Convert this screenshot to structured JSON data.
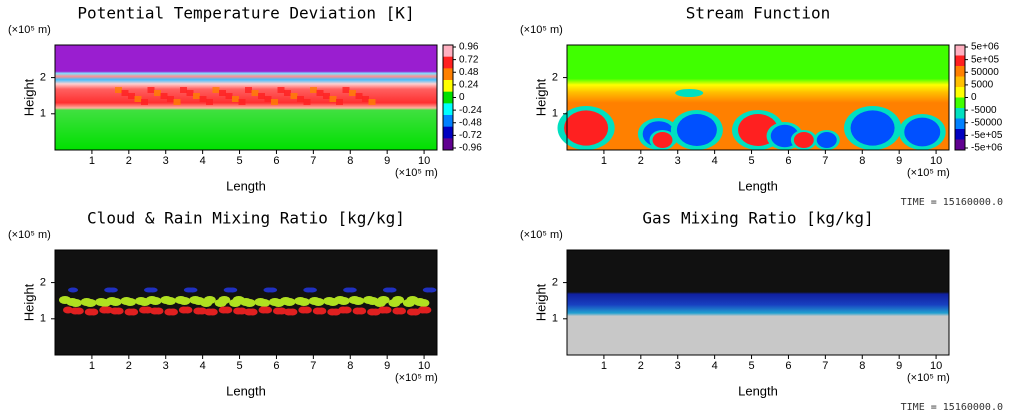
{
  "chart_data": [
    {
      "type": "field",
      "title": "Potential Temperature Deviation [K]",
      "xlabel": "Length",
      "ylabel": "Height",
      "x_unit": "(×10⁵ m)",
      "y_unit": "(×10⁵ m)",
      "xlim": [
        0,
        10.35
      ],
      "ylim": [
        0,
        2.9
      ],
      "xticks": [
        1,
        2,
        3,
        4,
        5,
        6,
        7,
        8,
        9,
        10
      ],
      "yticks": [
        1,
        2
      ],
      "colorbar": {
        "colors": [
          "#ffb0c0",
          "#ff2020",
          "#ff8000",
          "#ffff00",
          "#00e000",
          "#00ffff",
          "#0080ff",
          "#0000c0",
          "#600090"
        ],
        "ticks": [
          0.96,
          0.72,
          0.48,
          0.24,
          0,
          -0.24,
          -0.48,
          -0.72,
          -0.96
        ]
      }
    },
    {
      "type": "field",
      "title": "Stream Function",
      "xlabel": "Length",
      "ylabel": "Height",
      "x_unit": "(×10⁵ m)",
      "y_unit": "(×10⁵ m)",
      "xlim": [
        0,
        10.35
      ],
      "ylim": [
        0,
        2.9
      ],
      "xticks": [
        1,
        2,
        3,
        4,
        5,
        6,
        7,
        8,
        9,
        10
      ],
      "yticks": [
        1,
        2
      ],
      "time": "TIME = 15160000.0",
      "colorbar": {
        "colors": [
          "#ffb0c0",
          "#ff2020",
          "#ff8000",
          "#ffc000",
          "#ffff00",
          "#40ff00",
          "#00e0c0",
          "#0080ff",
          "#0000c0",
          "#600090"
        ],
        "ticks": [
          {
            "value": 5000000,
            "label": "5e+06"
          },
          {
            "value": 500000,
            "label": "5e+05"
          },
          50000,
          5000,
          0,
          -5000,
          -50000,
          {
            "value": -500000,
            "label": "-5e+05"
          },
          {
            "value": -5000000,
            "label": "-5e+06"
          }
        ]
      }
    },
    {
      "type": "field",
      "title": "Cloud & Rain Mixing Ratio [kg/kg]",
      "xlabel": "Length",
      "ylabel": "Height",
      "x_unit": "(×10⁵ m)",
      "y_unit": "(×10⁵ m)",
      "xlim": [
        0,
        10.35
      ],
      "ylim": [
        0,
        2.9
      ],
      "xticks": [
        1,
        2,
        3,
        4,
        5,
        6,
        7,
        8,
        9,
        10
      ],
      "yticks": [
        1,
        2
      ]
    },
    {
      "type": "field",
      "title": "Gas Mixing Ratio [kg/kg]",
      "xlabel": "Length",
      "ylabel": "Height",
      "x_unit": "(×10⁵ m)",
      "y_unit": "(×10⁵ m)",
      "xlim": [
        0,
        10.35
      ],
      "ylim": [
        0,
        2.9
      ],
      "xticks": [
        1,
        2,
        3,
        4,
        5,
        6,
        7,
        8,
        9,
        10
      ],
      "yticks": [
        1,
        2
      ],
      "time": "TIME = 15160000.0"
    }
  ]
}
